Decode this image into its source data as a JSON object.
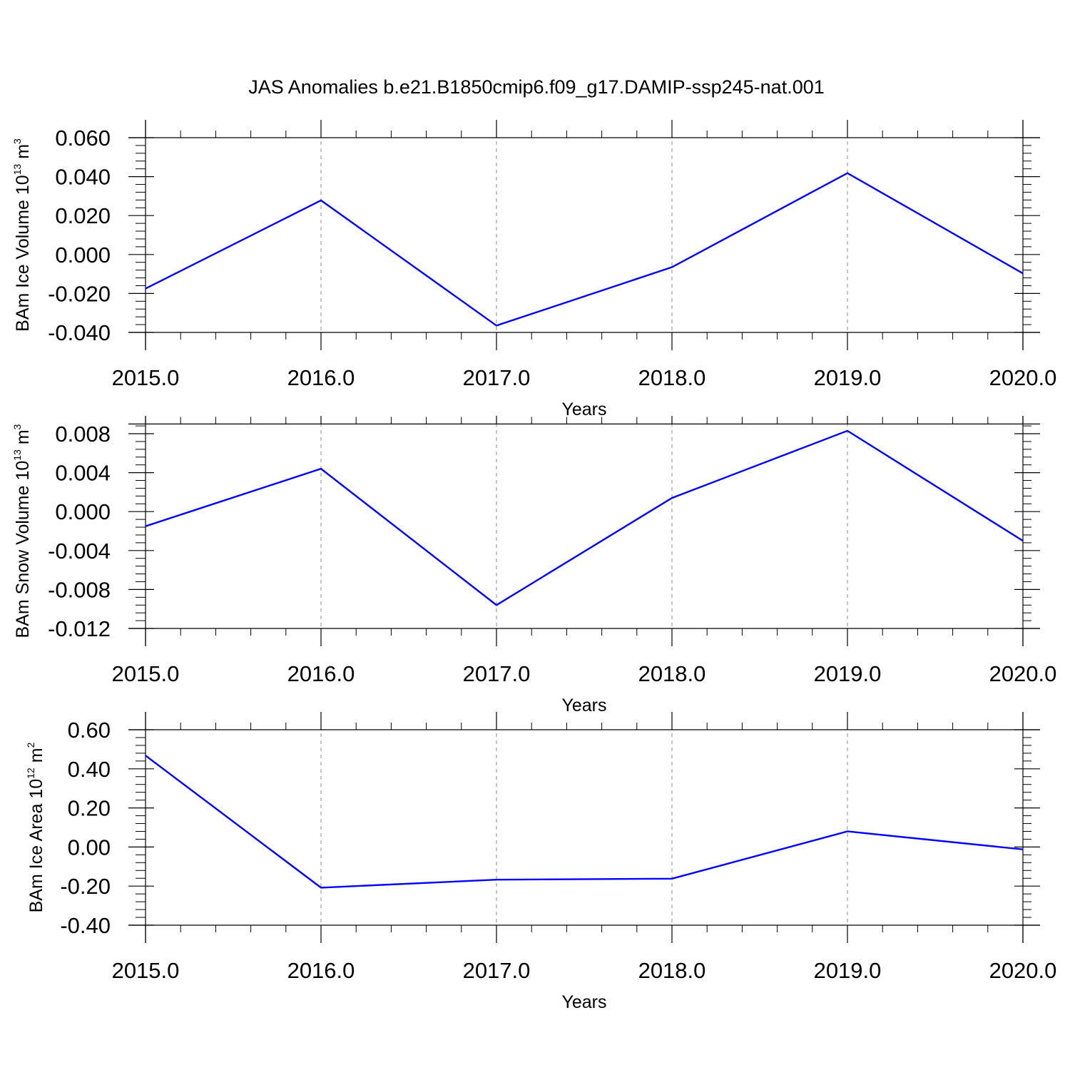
{
  "figure_title": "JAS Anomalies b.e21.B1850cmip6.f09_g17.DAMIP-ssp245-nat.001",
  "colors": {
    "line": "#0000ff",
    "grid": "#888888",
    "axis": "#000000"
  },
  "chart_data": [
    {
      "type": "line",
      "title": "",
      "xlabel": "Years",
      "ylabel": {
        "prefix": "BAm Ice Volume 10",
        "exp": "13",
        "unit": " m",
        "unit_exp": "3"
      },
      "x": [
        2015,
        2016,
        2017,
        2018,
        2019,
        2020
      ],
      "xlim": [
        2015,
        2020
      ],
      "x_ticks": [
        2015,
        2016,
        2017,
        2018,
        2019,
        2020
      ],
      "x_tick_labels": [
        "2015.0",
        "2016.0",
        "2017.0",
        "2018.0",
        "2019.0",
        "2020.0"
      ],
      "ylim": [
        -0.04,
        0.06
      ],
      "y_ticks": [
        -0.04,
        -0.02,
        0.0,
        0.02,
        0.04,
        0.06
      ],
      "y_tick_labels": [
        "-0.040",
        "-0.020",
        "0.000",
        "0.020",
        "0.040",
        "0.060"
      ],
      "grid": "vertical-dashed",
      "series": [
        {
          "values": [
            -0.0175,
            0.0278,
            -0.0365,
            -0.0065,
            0.0418,
            -0.0097
          ]
        }
      ]
    },
    {
      "type": "line",
      "title": "",
      "xlabel": "Years",
      "ylabel": {
        "prefix": "BAm Snow Volume 10",
        "exp": "13",
        "unit": " m",
        "unit_exp": "3"
      },
      "x": [
        2015,
        2016,
        2017,
        2018,
        2019,
        2020
      ],
      "xlim": [
        2015,
        2020
      ],
      "x_ticks": [
        2015,
        2016,
        2017,
        2018,
        2019,
        2020
      ],
      "x_tick_labels": [
        "2015.0",
        "2016.0",
        "2017.0",
        "2018.0",
        "2019.0",
        "2020.0"
      ],
      "ylim": [
        -0.012,
        0.009
      ],
      "y_ticks": [
        -0.012,
        -0.008,
        -0.004,
        0.0,
        0.004,
        0.008
      ],
      "y_tick_labels": [
        "-0.012",
        "-0.008",
        "-0.004",
        "0.000",
        "0.004",
        "0.008"
      ],
      "grid": "vertical-dashed",
      "series": [
        {
          "values": [
            -0.0015,
            0.0044,
            -0.0096,
            0.0014,
            0.0083,
            -0.003
          ]
        }
      ]
    },
    {
      "type": "line",
      "title": "",
      "xlabel": "Years",
      "ylabel": {
        "prefix": "BAm Ice Area 10",
        "exp": "12",
        "unit": " m",
        "unit_exp": "2"
      },
      "x": [
        2015,
        2016,
        2017,
        2018,
        2019,
        2020
      ],
      "xlim": [
        2015,
        2020
      ],
      "x_ticks": [
        2015,
        2016,
        2017,
        2018,
        2019,
        2020
      ],
      "x_tick_labels": [
        "2015.0",
        "2016.0",
        "2017.0",
        "2018.0",
        "2019.0",
        "2020.0"
      ],
      "ylim": [
        -0.4,
        0.6
      ],
      "y_ticks": [
        -0.4,
        -0.2,
        0.0,
        0.2,
        0.4,
        0.6
      ],
      "y_tick_labels": [
        "-0.40",
        "-0.20",
        "0.00",
        "0.20",
        "0.40",
        "0.60"
      ],
      "grid": "vertical-dashed",
      "series": [
        {
          "values": [
            0.468,
            -0.208,
            -0.167,
            -0.162,
            0.08,
            -0.012
          ]
        }
      ]
    }
  ]
}
